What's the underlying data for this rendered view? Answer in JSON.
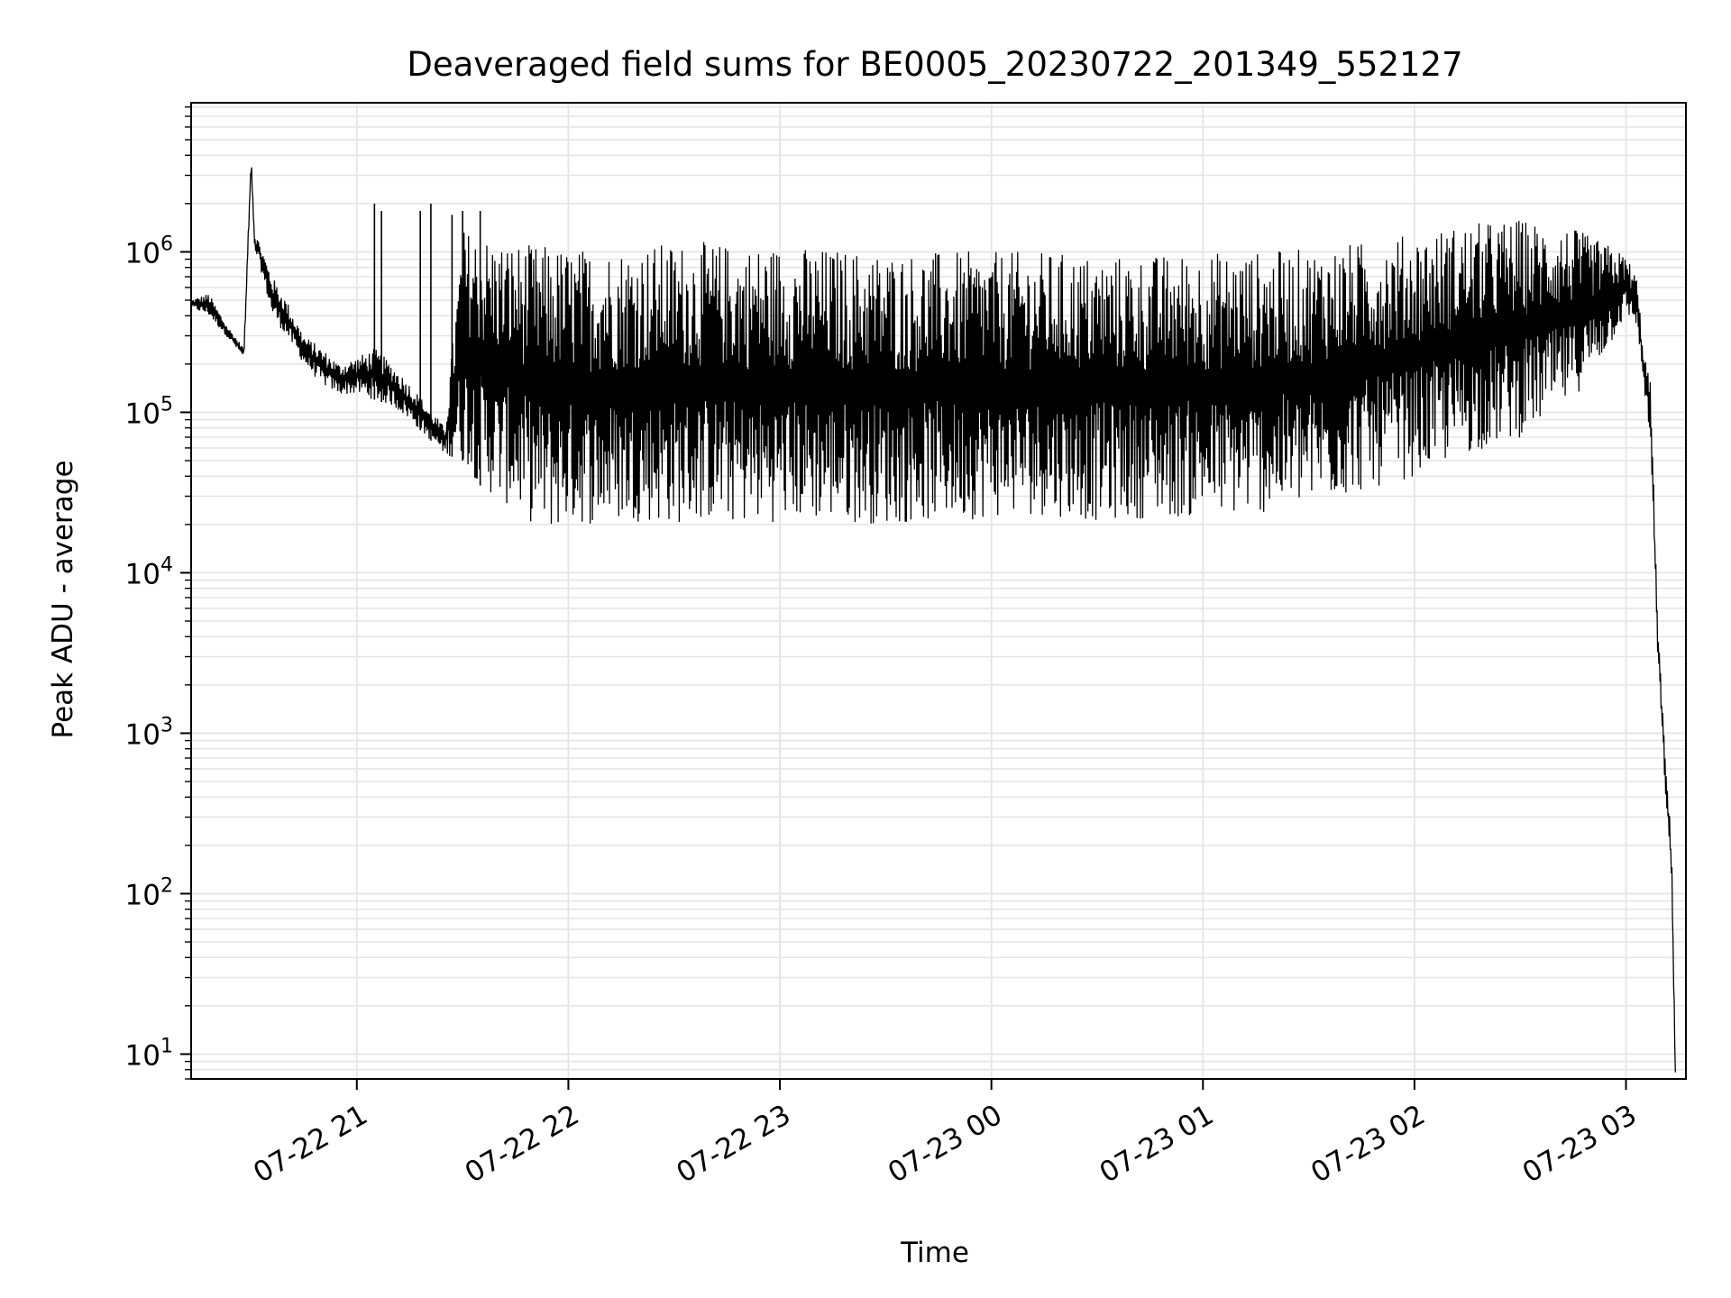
{
  "chart_data": {
    "type": "line",
    "title": "Deaveraged field sums for BE0005_20230722_201349_552127",
    "xlabel": "Time",
    "ylabel": "Peak ADU - average",
    "yscale": "log",
    "ylim": [
      7,
      8500000.0
    ],
    "xlim": [
      "2023-07-22 20:13",
      "2023-07-23 03:17"
    ],
    "grid": true,
    "grid_minor": true,
    "line_color": "#000000",
    "grid_color": "#e5e5e5",
    "x_ticks": [
      {
        "t": "2023-07-22 21:00",
        "label": "07-22 21"
      },
      {
        "t": "2023-07-22 22:00",
        "label": "07-22 22"
      },
      {
        "t": "2023-07-22 23:00",
        "label": "07-22 23"
      },
      {
        "t": "2023-07-23 00:00",
        "label": "07-23 00"
      },
      {
        "t": "2023-07-23 01:00",
        "label": "07-23 01"
      },
      {
        "t": "2023-07-23 02:00",
        "label": "07-23 02"
      },
      {
        "t": "2023-07-23 03:00",
        "label": "07-23 03"
      }
    ],
    "y_ticks": [
      {
        "v": 10,
        "base": "10",
        "exp": "1"
      },
      {
        "v": 100,
        "base": "10",
        "exp": "2"
      },
      {
        "v": 1000,
        "base": "10",
        "exp": "3"
      },
      {
        "v": 10000,
        "base": "10",
        "exp": "4"
      },
      {
        "v": 100000,
        "base": "10",
        "exp": "5"
      },
      {
        "v": 1000000,
        "base": "10",
        "exp": "6"
      }
    ],
    "series": [
      {
        "x": [
          "2023-07-22 20:13",
          "2023-07-22 20:18",
          "2023-07-22 20:23",
          "2023-07-22 20:28",
          "2023-07-22 20:30",
          "2023-07-22 20:31",
          "2023-07-22 20:32",
          "2023-07-22 20:36",
          "2023-07-22 20:40",
          "2023-07-22 20:45",
          "2023-07-22 20:50",
          "2023-07-22 20:55",
          "2023-07-22 21:00",
          "2023-07-22 21:05",
          "2023-07-22 21:10",
          "2023-07-22 21:15",
          "2023-07-22 21:20",
          "2023-07-22 21:25",
          "2023-07-22 21:30",
          "2023-07-22 21:35",
          "2023-07-22 21:40",
          "2023-07-22 21:45",
          "2023-07-22 21:50",
          "2023-07-22 21:55",
          "2023-07-22 22:00",
          "2023-07-22 22:10",
          "2023-07-22 22:20",
          "2023-07-22 22:30",
          "2023-07-22 22:40",
          "2023-07-22 22:50",
          "2023-07-22 23:00",
          "2023-07-22 23:15",
          "2023-07-22 23:30",
          "2023-07-22 23:45",
          "2023-07-23 00:00",
          "2023-07-23 00:15",
          "2023-07-23 00:30",
          "2023-07-23 00:45",
          "2023-07-23 01:00",
          "2023-07-23 01:15",
          "2023-07-23 01:30",
          "2023-07-23 01:45",
          "2023-07-23 02:00",
          "2023-07-23 02:15",
          "2023-07-23 02:30",
          "2023-07-23 02:45",
          "2023-07-23 02:55",
          "2023-07-23 03:00",
          "2023-07-23 03:03",
          "2023-07-23 03:05",
          "2023-07-23 03:07",
          "2023-07-23 03:09",
          "2023-07-23 03:11",
          "2023-07-23 03:13",
          "2023-07-23 03:14"
        ],
        "upper": [
          500000,
          550000,
          350000,
          250000,
          4500000,
          1300000,
          1200000,
          700000,
          500000,
          300000,
          250000,
          200000,
          220000,
          250000,
          200000,
          150000,
          110000,
          80000,
          1400000,
          1300000,
          1200000,
          1150000,
          1100000,
          1100000,
          1050000,
          1050000,
          1100000,
          1150000,
          1150000,
          1100000,
          1100000,
          1050000,
          1000000,
          1000000,
          1000000,
          1000000,
          950000,
          950000,
          1000000,
          1000000,
          1050000,
          1150000,
          1300000,
          1500000,
          1600000,
          1400000,
          1100000,
          950000,
          700000,
          250000,
          150000,
          5000,
          800,
          200,
          8
        ],
        "lower": [
          450000,
          400000,
          300000,
          220000,
          3000000,
          1000000,
          900000,
          400000,
          300000,
          200000,
          150000,
          130000,
          130000,
          120000,
          110000,
          90000,
          70000,
          55000,
          50000,
          35000,
          28000,
          25000,
          20000,
          18000,
          20000,
          20000,
          21000,
          20000,
          21000,
          20000,
          21000,
          21000,
          20000,
          21000,
          22000,
          23000,
          21000,
          22000,
          22000,
          23000,
          26000,
          32000,
          40000,
          55000,
          70000,
          120000,
          250000,
          400000,
          350000,
          150000,
          60000,
          3000,
          500,
          100,
          7
        ]
      }
    ],
    "spikes_early": [
      {
        "t": "2023-07-22 21:05",
        "v": 2000000
      },
      {
        "t": "2023-07-22 21:07",
        "v": 1800000
      },
      {
        "t": "2023-07-22 21:18",
        "v": 1800000
      },
      {
        "t": "2023-07-22 21:21",
        "v": 2000000
      },
      {
        "t": "2023-07-22 21:27",
        "v": 1700000
      },
      {
        "t": "2023-07-22 21:30",
        "v": 1800000
      },
      {
        "t": "2023-07-22 21:35",
        "v": 1800000
      }
    ]
  }
}
